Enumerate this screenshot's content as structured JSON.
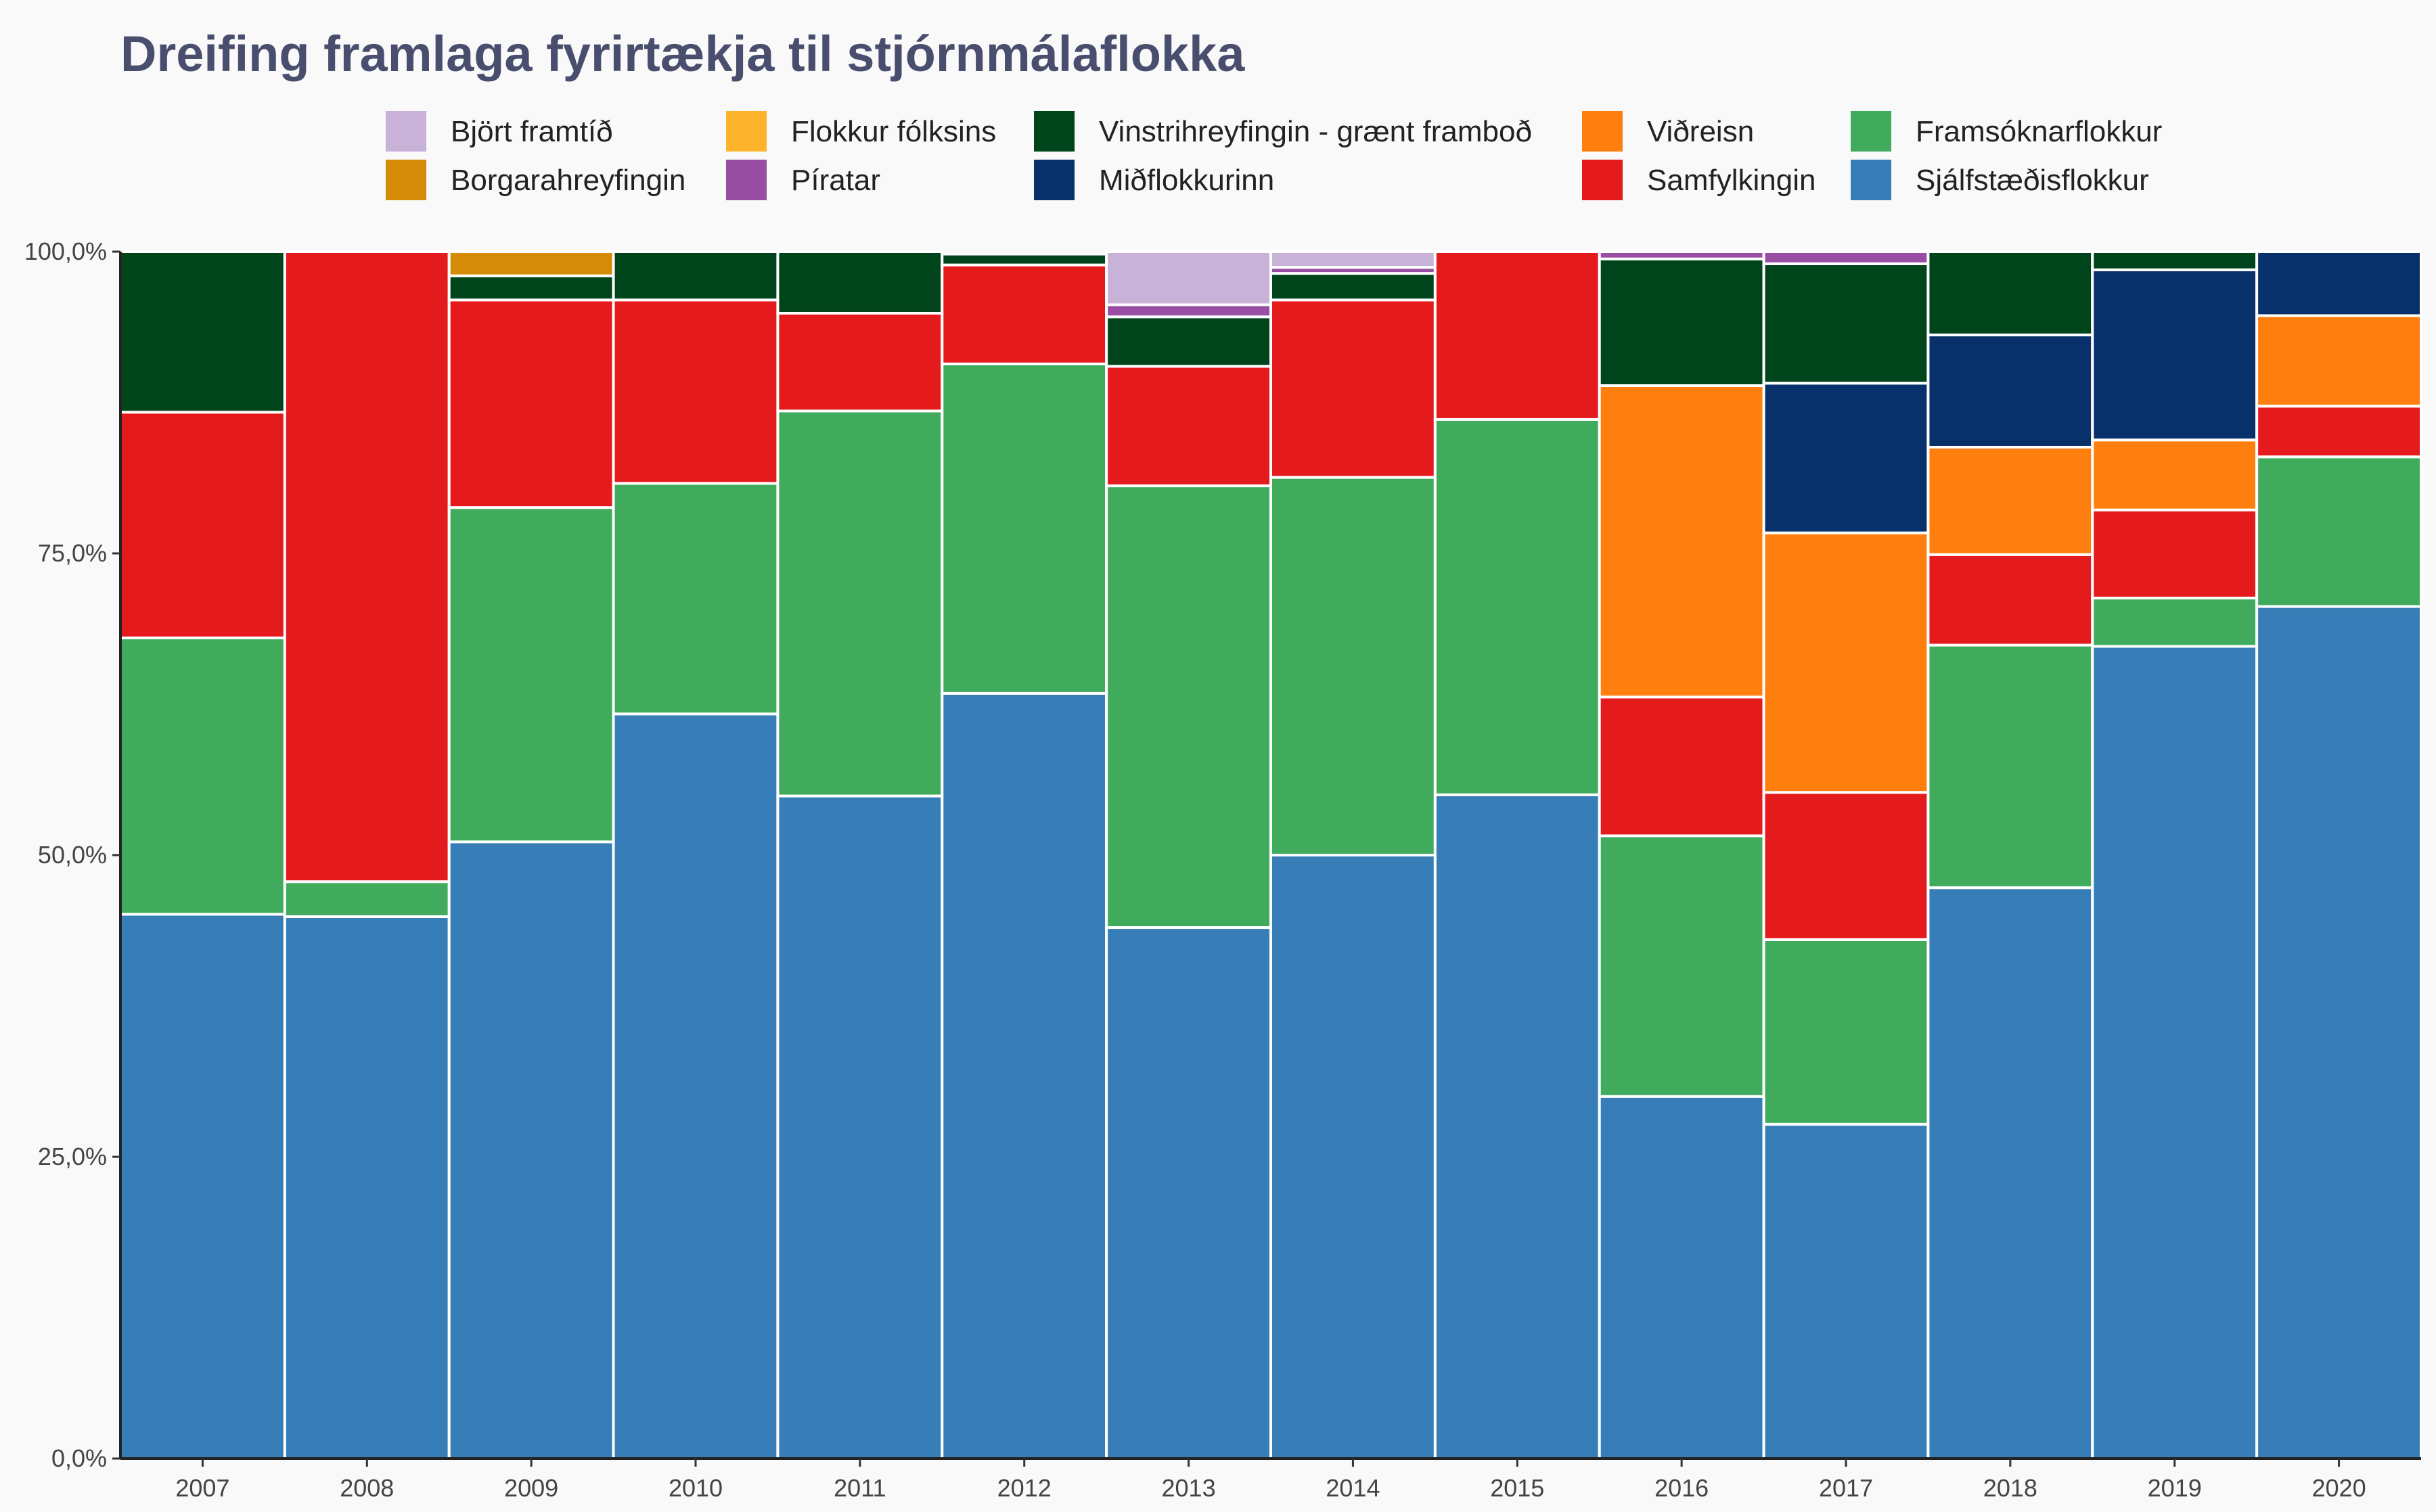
{
  "chart_data": {
    "type": "bar",
    "stacked": "percent",
    "title": "Dreifing framlaga fyrirtækja til stjórnmálaflokka",
    "xlabel": "",
    "ylabel": "",
    "ylim": [
      0,
      1
    ],
    "yticks": [
      0,
      0.25,
      0.5,
      0.75,
      1
    ],
    "ytick_labels": [
      "0,0%",
      "25,0%",
      "50,0%",
      "75,0%",
      "100,0%"
    ],
    "legend_position": "top",
    "categories": [
      "2007",
      "2008",
      "2009",
      "2010",
      "2011",
      "2012",
      "2013",
      "2014",
      "2015",
      "2016",
      "2017",
      "2018",
      "2019",
      "2020"
    ],
    "series": [
      {
        "name": "Sjálfstæðisflokkur",
        "color": "#377eb8",
        "values": [
          0.451,
          0.449,
          0.511,
          0.617,
          0.549,
          0.634,
          0.44,
          0.5,
          0.55,
          0.3,
          0.277,
          0.473,
          0.673,
          0.706
        ]
      },
      {
        "name": "Framsóknarflokkur",
        "color": "#41ab5d",
        "values": [
          0.229,
          0.029,
          0.277,
          0.191,
          0.319,
          0.273,
          0.366,
          0.313,
          0.311,
          0.216,
          0.153,
          0.201,
          0.04,
          0.124
        ]
      },
      {
        "name": "Samfylkingin",
        "color": "#e41a1c",
        "values": [
          0.187,
          0.522,
          0.172,
          0.152,
          0.081,
          0.082,
          0.099,
          0.147,
          0.139,
          0.115,
          0.122,
          0.075,
          0.073,
          0.042
        ]
      },
      {
        "name": "Viðreisn",
        "color": "#ff7f0e",
        "values": [
          0,
          0,
          0,
          0,
          0,
          0,
          0,
          0,
          0,
          0.258,
          0.215,
          0.089,
          0.058,
          0.075
        ]
      },
      {
        "name": "Miðflokkurinn",
        "color": "#08306b",
        "values": [
          0,
          0,
          0,
          0,
          0,
          0,
          0,
          0,
          0,
          0,
          0.124,
          0.093,
          0.141,
          0.053
        ]
      },
      {
        "name": "Vinstrihreyfingin - grænt framboð",
        "color": "#00441b",
        "values": [
          0.133,
          0,
          0.02,
          0.04,
          0.051,
          0.009,
          0.041,
          0.022,
          0,
          0.105,
          0.099,
          0.069,
          0.015,
          0
        ]
      },
      {
        "name": "Píratar",
        "color": "#984ea3",
        "values": [
          0,
          0,
          0,
          0,
          0,
          0,
          0.01,
          0.005,
          0,
          0.006,
          0.01,
          0,
          0,
          0
        ]
      },
      {
        "name": "Flokkur fólksins",
        "color": "#fdb42c",
        "values": [
          0,
          0,
          0,
          0,
          0,
          0,
          0,
          0,
          0,
          0,
          0,
          0,
          0,
          0
        ]
      },
      {
        "name": "Borgarahreyfingin",
        "color": "#d58a08",
        "values": [
          0,
          0,
          0.02,
          0,
          0,
          0,
          0,
          0,
          0,
          0,
          0,
          0,
          0,
          0
        ]
      },
      {
        "name": "Björt framtíð",
        "color": "#c8b2d8",
        "values": [
          0,
          0,
          0,
          0,
          0,
          0,
          0.044,
          0.013,
          0,
          0,
          0,
          0,
          0,
          0
        ]
      }
    ],
    "legend_order": [
      "Björt framtíð",
      "Flokkur fólksins",
      "Vinstrihreyfingin - grænt framboð",
      "Viðreisn",
      "Framsóknarflokkur",
      "Borgarahreyfingin",
      "Píratar",
      "Miðflokkurinn",
      "Samfylkingin",
      "Sjálfstæðisflokkur"
    ]
  }
}
